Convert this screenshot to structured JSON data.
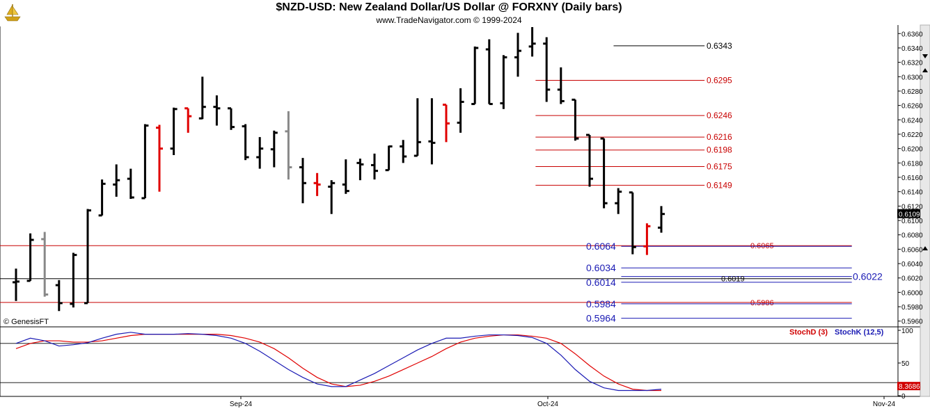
{
  "title": "$NZD-USD:  New Zealand Dollar/US Dollar @ FORXNY  (Daily bars)",
  "subtitle": "www.TradeNavigator.com © 1999-2024",
  "watermark": "© GenesisFT",
  "colors": {
    "up": "#000000",
    "down": "#e00000",
    "neutral": "#888888",
    "red_level": "#c80000",
    "blue_level": "#1a1ab4",
    "black_level": "#000000",
    "stoch_d": "#e00000",
    "stoch_k": "#1a1ab4"
  },
  "chart_data": [
    {
      "type": "ohlc",
      "name": "price",
      "y_axis": {
        "range": [
          0.5952,
          0.6368
        ],
        "ticks": [
          "0.5960",
          "0.5980",
          "0.6000",
          "0.6020",
          "0.6040",
          "0.6060",
          "0.6080",
          "0.6100",
          "0.6120",
          "0.6140",
          "0.6160",
          "0.6180",
          "0.6200",
          "0.6220",
          "0.6240",
          "0.6260",
          "0.6280",
          "0.6300",
          "0.6320",
          "0.6340",
          "0.6360"
        ]
      },
      "x_axis": {
        "labels": [
          "Sep-24",
          "Oct-24",
          "Nov-24"
        ]
      },
      "last_price": "0.6109",
      "bars": [
        {
          "o": 0.6014,
          "h": 0.6033,
          "l": 0.5988,
          "c": 0.6015,
          "col": "up"
        },
        {
          "o": 0.6016,
          "h": 0.6082,
          "l": 0.6016,
          "c": 0.6073,
          "col": "up"
        },
        {
          "o": 0.6074,
          "h": 0.6084,
          "l": 0.5994,
          "c": 0.5997,
          "col": "neutral"
        },
        {
          "o": 0.601,
          "h": 0.6017,
          "l": 0.5974,
          "c": 0.5985,
          "col": "up"
        },
        {
          "o": 0.5984,
          "h": 0.6055,
          "l": 0.5979,
          "c": 0.6052,
          "col": "up"
        },
        {
          "o": 0.5985,
          "h": 0.6116,
          "l": 0.5985,
          "c": 0.6114,
          "col": "up"
        },
        {
          "o": 0.6107,
          "h": 0.6157,
          "l": 0.6107,
          "c": 0.6151,
          "col": "up"
        },
        {
          "o": 0.615,
          "h": 0.6178,
          "l": 0.6133,
          "c": 0.6156,
          "col": "up"
        },
        {
          "o": 0.6158,
          "h": 0.6172,
          "l": 0.613,
          "c": 0.6132,
          "col": "up"
        },
        {
          "o": 0.6131,
          "h": 0.6234,
          "l": 0.6131,
          "c": 0.6232,
          "col": "up"
        },
        {
          "o": 0.6229,
          "h": 0.6233,
          "l": 0.614,
          "c": 0.62,
          "col": "down"
        },
        {
          "o": 0.62,
          "h": 0.6257,
          "l": 0.6191,
          "c": 0.6255,
          "col": "up"
        },
        {
          "o": 0.6256,
          "h": 0.6256,
          "l": 0.6222,
          "c": 0.6245,
          "col": "down"
        },
        {
          "o": 0.6242,
          "h": 0.63,
          "l": 0.6241,
          "c": 0.6258,
          "col": "up"
        },
        {
          "o": 0.6258,
          "h": 0.6274,
          "l": 0.6232,
          "c": 0.6256,
          "col": "up"
        },
        {
          "o": 0.6256,
          "h": 0.6256,
          "l": 0.6226,
          "c": 0.623,
          "col": "up"
        },
        {
          "o": 0.6231,
          "h": 0.6234,
          "l": 0.6184,
          "c": 0.6188,
          "col": "up"
        },
        {
          "o": 0.6188,
          "h": 0.6216,
          "l": 0.6172,
          "c": 0.62,
          "col": "up"
        },
        {
          "o": 0.6199,
          "h": 0.6225,
          "l": 0.6174,
          "c": 0.6222,
          "col": "up"
        },
        {
          "o": 0.6224,
          "h": 0.6252,
          "l": 0.6157,
          "c": 0.6174,
          "col": "neutral"
        },
        {
          "o": 0.6174,
          "h": 0.6187,
          "l": 0.6124,
          "c": 0.6152,
          "col": "up"
        },
        {
          "o": 0.6152,
          "h": 0.6166,
          "l": 0.6134,
          "c": 0.615,
          "col": "down"
        },
        {
          "o": 0.6147,
          "h": 0.6156,
          "l": 0.6109,
          "c": 0.6152,
          "col": "up"
        },
        {
          "o": 0.615,
          "h": 0.6185,
          "l": 0.6137,
          "c": 0.6141,
          "col": "up"
        },
        {
          "o": 0.618,
          "h": 0.6186,
          "l": 0.6156,
          "c": 0.6178,
          "col": "up"
        },
        {
          "o": 0.6177,
          "h": 0.6193,
          "l": 0.6157,
          "c": 0.6169,
          "col": "up"
        },
        {
          "o": 0.617,
          "h": 0.6204,
          "l": 0.617,
          "c": 0.6203,
          "col": "up"
        },
        {
          "o": 0.6203,
          "h": 0.6212,
          "l": 0.618,
          "c": 0.6189,
          "col": "up"
        },
        {
          "o": 0.619,
          "h": 0.627,
          "l": 0.619,
          "c": 0.6209,
          "col": "up"
        },
        {
          "o": 0.621,
          "h": 0.627,
          "l": 0.6178,
          "c": 0.6208,
          "col": "up"
        },
        {
          "o": 0.6261,
          "h": 0.6261,
          "l": 0.6209,
          "c": 0.6235,
          "col": "down"
        },
        {
          "o": 0.6236,
          "h": 0.6284,
          "l": 0.6222,
          "c": 0.6265,
          "col": "up"
        },
        {
          "o": 0.6262,
          "h": 0.6342,
          "l": 0.6262,
          "c": 0.634,
          "col": "up"
        },
        {
          "o": 0.6338,
          "h": 0.6352,
          "l": 0.6262,
          "c": 0.6262,
          "col": "up"
        },
        {
          "o": 0.6263,
          "h": 0.633,
          "l": 0.6255,
          "c": 0.6327,
          "col": "up"
        },
        {
          "o": 0.6327,
          "h": 0.6361,
          "l": 0.63,
          "c": 0.6336,
          "col": "up"
        },
        {
          "o": 0.6342,
          "h": 0.6369,
          "l": 0.6328,
          "c": 0.6346,
          "col": "up"
        },
        {
          "o": 0.6346,
          "h": 0.6355,
          "l": 0.6265,
          "c": 0.6282,
          "col": "up"
        },
        {
          "o": 0.6282,
          "h": 0.6313,
          "l": 0.6262,
          "c": 0.6266,
          "col": "up"
        },
        {
          "o": 0.6268,
          "h": 0.6268,
          "l": 0.6211,
          "c": 0.6214,
          "col": "up"
        },
        {
          "o": 0.6219,
          "h": 0.6219,
          "l": 0.6147,
          "c": 0.6158,
          "col": "up"
        },
        {
          "o": 0.6214,
          "h": 0.6214,
          "l": 0.6117,
          "c": 0.6124,
          "col": "up"
        },
        {
          "o": 0.6124,
          "h": 0.6145,
          "l": 0.6109,
          "c": 0.614,
          "col": "up"
        },
        {
          "o": 0.6139,
          "h": 0.6139,
          "l": 0.6053,
          "c": 0.6063,
          "col": "up"
        },
        {
          "o": 0.6064,
          "h": 0.6096,
          "l": 0.6052,
          "c": 0.6092,
          "col": "down"
        },
        {
          "o": 0.609,
          "h": 0.612,
          "l": 0.6083,
          "c": 0.6109,
          "col": "up"
        }
      ],
      "levels": [
        {
          "value": 0.6343,
          "label": "0.6343",
          "color": "black",
          "x0": 0.6833,
          "x1": 0.7846
        },
        {
          "value": 0.6295,
          "label": "0.6295",
          "color": "red",
          "x0": 0.5964,
          "x1": 0.7846
        },
        {
          "value": 0.6246,
          "label": "0.6246",
          "color": "red",
          "x0": 0.5964,
          "x1": 0.7846
        },
        {
          "value": 0.6216,
          "label": "0.6216",
          "color": "red",
          "x0": 0.5964,
          "x1": 0.7846
        },
        {
          "value": 0.6198,
          "label": "0.6198",
          "color": "red",
          "x0": 0.5964,
          "x1": 0.7846
        },
        {
          "value": 0.6175,
          "label": "0.6175",
          "color": "red",
          "x0": 0.5964,
          "x1": 0.7846
        },
        {
          "value": 0.6149,
          "label": "0.6149",
          "color": "red",
          "x0": 0.5964,
          "x1": 0.7846
        },
        {
          "value": 0.6065,
          "label": "0.6065",
          "color": "red",
          "x0": 0.0,
          "x1": 0.9486
        },
        {
          "value": 0.6064,
          "label": "0.6064",
          "color": "blue",
          "x0": 0.6918,
          "x1": 0.9486
        },
        {
          "value": 0.6034,
          "label": "0.6034",
          "color": "blue",
          "x0": 0.6918,
          "x1": 0.9486
        },
        {
          "value": 0.6022,
          "label": "0.6022",
          "color": "blue",
          "x0": 0.6918,
          "x1": 0.9486
        },
        {
          "value": 0.6019,
          "label": "0.6019",
          "color": "black",
          "x0": 0.0,
          "x1": 0.9486
        },
        {
          "value": 0.6014,
          "label": "0.6014",
          "color": "blue",
          "x0": 0.6918,
          "x1": 0.9486
        },
        {
          "value": 0.5986,
          "label": "0.5986",
          "color": "red",
          "x0": 0.0,
          "x1": 0.9486
        },
        {
          "value": 0.5984,
          "label": "0.5984",
          "color": "blue",
          "x0": 0.6918,
          "x1": 0.9486
        },
        {
          "value": 0.5964,
          "label": "0.5964",
          "color": "blue",
          "x0": 0.6918,
          "x1": 0.9486
        }
      ]
    },
    {
      "type": "line",
      "name": "stochastic",
      "y_axis": {
        "range": [
          0,
          100
        ],
        "ticks": [
          "100",
          "50",
          "0"
        ],
        "reference_lines": [
          80,
          20
        ]
      },
      "last_value": "8.3686",
      "series": [
        {
          "name": "StochD (3)",
          "color": "stoch_d",
          "values": [
            72,
            80,
            84,
            84,
            82,
            82,
            84,
            88,
            92,
            94,
            94,
            94,
            94,
            94,
            94,
            92,
            88,
            82,
            72,
            58,
            42,
            28,
            18,
            14,
            16,
            22,
            30,
            40,
            50,
            60,
            72,
            82,
            88,
            91,
            93,
            93,
            91,
            88,
            80,
            64,
            46,
            30,
            18,
            10,
            8,
            8
          ]
        },
        {
          "name": "StochK (12,5)",
          "color": "stoch_k",
          "values": [
            80,
            88,
            84,
            76,
            78,
            81,
            88,
            94,
            97,
            94,
            94,
            94,
            95,
            94,
            92,
            88,
            80,
            68,
            54,
            40,
            28,
            18,
            14,
            14,
            24,
            34,
            46,
            58,
            70,
            80,
            88,
            88,
            91,
            93,
            93,
            92,
            89,
            80,
            62,
            40,
            22,
            12,
            8,
            8,
            8,
            10
          ]
        }
      ]
    }
  ]
}
